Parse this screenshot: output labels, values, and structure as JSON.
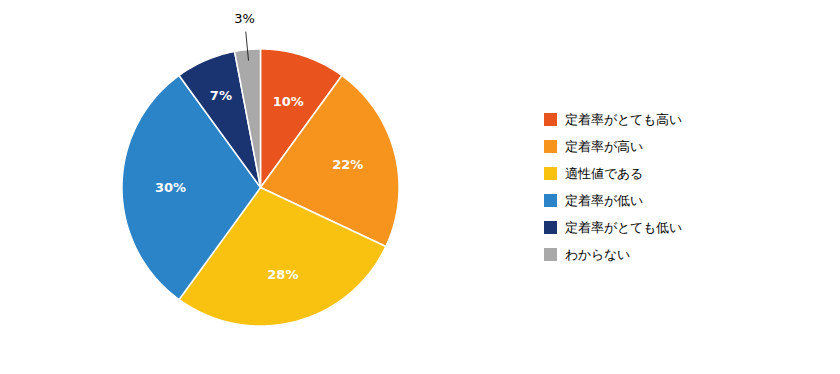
{
  "chart_data": {
    "type": "pie",
    "categories": [
      "定着率がとても高い",
      "定着率が高い",
      "適性値である",
      "定着率が低い",
      "定着率がとても低い",
      "わからない"
    ],
    "values": [
      10,
      22,
      28,
      30,
      7,
      3
    ],
    "value_labels": [
      "10%",
      "22%",
      "28%",
      "30%",
      "7%",
      "3%"
    ],
    "colors": [
      "#e8531e",
      "#f7941d",
      "#f9c110",
      "#2b83c8",
      "#1a3472",
      "#a9a9a9"
    ],
    "data_labels": true,
    "legend": "right"
  }
}
